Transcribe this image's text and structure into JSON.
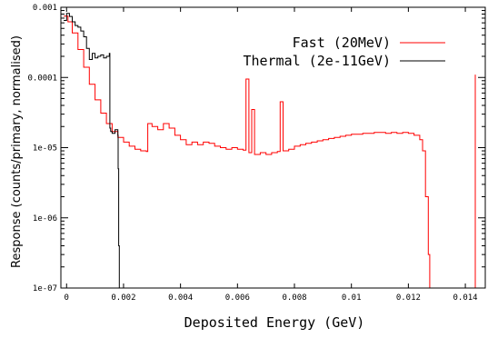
{
  "chart_data": {
    "type": "line",
    "title": "",
    "xlabel": "Deposited Energy (GeV)",
    "ylabel": "Response (counts/primary, normalised)",
    "xlim": [
      -0.0002,
      0.0147
    ],
    "ylim": [
      1e-07,
      0.001
    ],
    "yscale": "log",
    "grid": false,
    "legend_position": "top-right",
    "x_ticks": [
      {
        "v": 0,
        "label": "0"
      },
      {
        "v": 0.002,
        "label": "0.002"
      },
      {
        "v": 0.004,
        "label": "0.004"
      },
      {
        "v": 0.006,
        "label": "0.006"
      },
      {
        "v": 0.008,
        "label": "0.008"
      },
      {
        "v": 0.01,
        "label": "0.01"
      },
      {
        "v": 0.012,
        "label": "0.012"
      },
      {
        "v": 0.014,
        "label": "0.014"
      }
    ],
    "y_ticks": [
      {
        "v": 0.001,
        "label": "0.001"
      },
      {
        "v": 0.0001,
        "label": "0.0001"
      },
      {
        "v": 1e-05,
        "label": "1e-05"
      },
      {
        "v": 1e-06,
        "label": "1e-06"
      },
      {
        "v": 1e-07,
        "label": "1e-07"
      }
    ],
    "series": [
      {
        "name": "Fast (20MeV)",
        "color": "#ff0000",
        "x": [
          -0.0001,
          5e-05,
          0.0002,
          0.0004,
          0.0006,
          0.0008,
          0.001,
          0.0012,
          0.0014,
          0.0016,
          0.0018,
          0.002,
          0.0022,
          0.0024,
          0.0026,
          0.0028,
          0.00285,
          0.003,
          0.0032,
          0.0034,
          0.0036,
          0.0038,
          0.004,
          0.0042,
          0.0044,
          0.0046,
          0.0048,
          0.005,
          0.0052,
          0.0054,
          0.0056,
          0.0058,
          0.006,
          0.0062,
          0.0063,
          0.0064,
          0.0065,
          0.0066,
          0.0068,
          0.007,
          0.0072,
          0.0074,
          0.0075,
          0.0076,
          0.0078,
          0.008,
          0.0082,
          0.0084,
          0.0086,
          0.0088,
          0.009,
          0.0092,
          0.0094,
          0.0096,
          0.0098,
          0.01,
          0.0102,
          0.0104,
          0.0106,
          0.0108,
          0.011,
          0.0112,
          0.0114,
          0.0116,
          0.0118,
          0.012,
          0.0122,
          0.0124,
          0.0125,
          0.0126,
          0.0127,
          0.01275
        ],
        "y": [
          0.00075,
          0.00062,
          0.00043,
          0.00025,
          0.00014,
          8e-05,
          4.8e-05,
          3.1e-05,
          2.2e-05,
          1.7e-05,
          1.4e-05,
          1.2e-05,
          1.05e-05,
          9.5e-06,
          9e-06,
          8.8e-06,
          2.2e-05,
          2e-05,
          1.8e-05,
          2.2e-05,
          1.9e-05,
          1.5e-05,
          1.3e-05,
          1.1e-05,
          1.2e-05,
          1.1e-05,
          1.2e-05,
          1.15e-05,
          1.05e-05,
          1e-05,
          9.5e-06,
          1e-05,
          9.5e-06,
          9.2e-06,
          9.5e-05,
          8.5e-06,
          3.5e-05,
          8e-06,
          8.5e-06,
          8e-06,
          8.5e-06,
          8.8e-06,
          4.5e-05,
          9e-06,
          9.5e-06,
          1.05e-05,
          1.1e-05,
          1.15e-05,
          1.2e-05,
          1.25e-05,
          1.3e-05,
          1.35e-05,
          1.4e-05,
          1.45e-05,
          1.5e-05,
          1.55e-05,
          1.55e-05,
          1.6e-05,
          1.6e-05,
          1.65e-05,
          1.65e-05,
          1.6e-05,
          1.65e-05,
          1.6e-05,
          1.65e-05,
          1.6e-05,
          1.5e-05,
          1.3e-05,
          9e-06,
          2e-06,
          3e-07,
          1e-07
        ]
      },
      {
        "name": "Thermal (2e-11GeV)",
        "color": "#000000",
        "x": [
          -0.0001,
          0.0,
          0.0001,
          0.0002,
          0.0003,
          0.0004,
          0.0005,
          0.0006,
          0.0007,
          0.0008,
          0.0009,
          0.001,
          0.0011,
          0.0012,
          0.0013,
          0.0014,
          0.0015,
          0.00152,
          0.00155,
          0.0016,
          0.0017,
          0.0018,
          0.00181,
          0.00183,
          0.00185
        ],
        "y": [
          0.00065,
          0.00082,
          0.00074,
          0.00062,
          0.00055,
          0.00052,
          0.00046,
          0.00038,
          0.00026,
          0.00018,
          0.00022,
          0.00019,
          0.0002,
          0.00021,
          0.00019,
          0.0002,
          0.00022,
          1.9e-05,
          1.7e-05,
          1.6e-05,
          1.8e-05,
          1.5e-05,
          5e-06,
          4e-07,
          1e-07
        ]
      },
      {
        "name": "",
        "color": "#ff0000",
        "x": [
          0.01435,
          0.01435
        ],
        "y": [
          1e-07,
          0.00011
        ]
      }
    ]
  }
}
